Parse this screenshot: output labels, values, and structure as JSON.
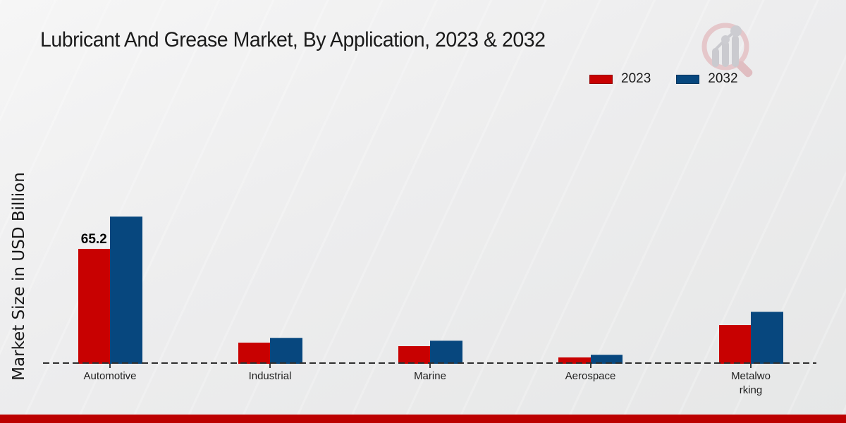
{
  "header": {
    "title": "Lubricant And Grease Market, By Application, 2023 & 2032"
  },
  "legend": {
    "items": [
      {
        "label": "2023",
        "color": "#c80101"
      },
      {
        "label": "2032",
        "color": "#07477e"
      }
    ]
  },
  "accent": {
    "bottom_bar_color": "#bc0000",
    "background_color": "#ececec",
    "watermark_ring_color": "#e5c3c7",
    "watermark_bar_color": "#c7c7cc"
  },
  "chart_data": {
    "type": "bar",
    "title": "Lubricant And Grease Market, By Application, 2023 & 2032",
    "xlabel": "",
    "ylabel": "Market Size in USD Billion",
    "categories": [
      "Automotive",
      "Industrial",
      "Marine",
      "Aerospace",
      "Metalworking"
    ],
    "x_labels": [
      "Automotive",
      "Industrial",
      "Marine",
      "Aerospace",
      "Metalwo\nrking"
    ],
    "series": [
      {
        "name": "2023",
        "color": "#c80101",
        "values": [
          65.2,
          12.0,
          10.0,
          3.6,
          22.0
        ],
        "point_labels": [
          "65.2",
          "",
          "",
          "",
          ""
        ]
      },
      {
        "name": "2032",
        "color": "#07477e",
        "values": [
          83.6,
          14.9,
          13.2,
          5.2,
          29.6
        ],
        "point_labels": [
          "",
          "",
          "",
          "",
          ""
        ]
      }
    ],
    "ylim": [
      0,
      90
    ],
    "grid": false,
    "legend_position": "top-right",
    "baseline_style": "dashed",
    "value_unit": "USD Billion"
  }
}
